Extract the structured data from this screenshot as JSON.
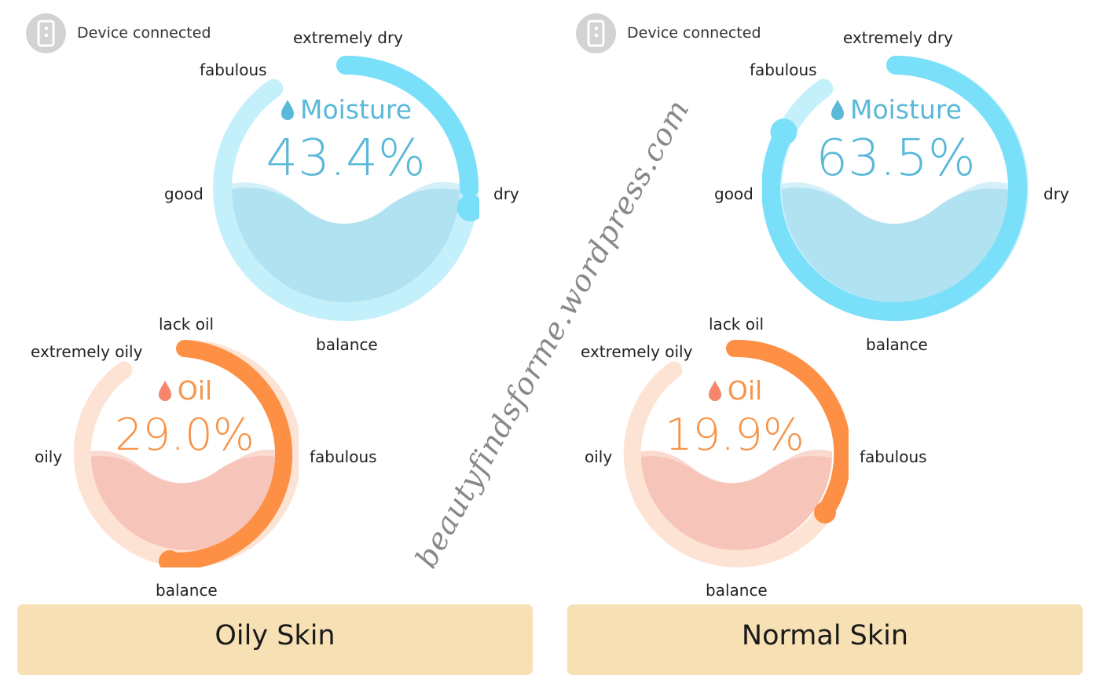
{
  "panels": [
    {
      "device_status": "Device connected",
      "moisture": {
        "title": "Moisture",
        "value": "43.4%",
        "level": 0.434,
        "labels": {
          "extremely_dry": "extremely dry",
          "fabulous": "fabulous",
          "good": "good",
          "dry": "dry",
          "balance": "balance"
        }
      },
      "oil": {
        "title": "Oil",
        "value": "29.0%",
        "level": 0.29,
        "labels": {
          "lack_oil": "lack oil",
          "extremely_oily": "extremely oily",
          "oily": "oily",
          "fabulous": "fabulous",
          "balance": "balance"
        }
      },
      "result": "Oily Skin"
    },
    {
      "device_status": "Device connected",
      "moisture": {
        "title": "Moisture",
        "value": "63.5%",
        "level": 0.635,
        "labels": {
          "extremely_dry": "extremely dry",
          "fabulous": "fabulous",
          "good": "good",
          "dry": "dry",
          "balance": "balance"
        }
      },
      "oil": {
        "title": "Oil",
        "value": "19.9%",
        "level": 0.199,
        "labels": {
          "lack_oil": "lack oil",
          "extremely_oily": "extremely oily",
          "oily": "oily",
          "fabulous": "fabulous",
          "balance": "balance"
        }
      },
      "result": "Normal Skin"
    }
  ],
  "watermark": "beautyfindsforme.wordpress.com",
  "colors": {
    "moisture_track": "#c4f0fb",
    "moisture_progress": "#7adff8",
    "moisture_text": "#5ab8d8",
    "moisture_water": "#b0e2f1",
    "oil_track": "#fde3d4",
    "oil_progress": "#fd9044",
    "oil_text": "#f7944a",
    "oil_water": "#f7c4b9",
    "oil_drop": "#f5856b",
    "result_bg": "#f6e0b4",
    "device_icon_bg": "#d3d3d3"
  },
  "icons": [
    "device-icon",
    "water-drop-icon"
  ]
}
